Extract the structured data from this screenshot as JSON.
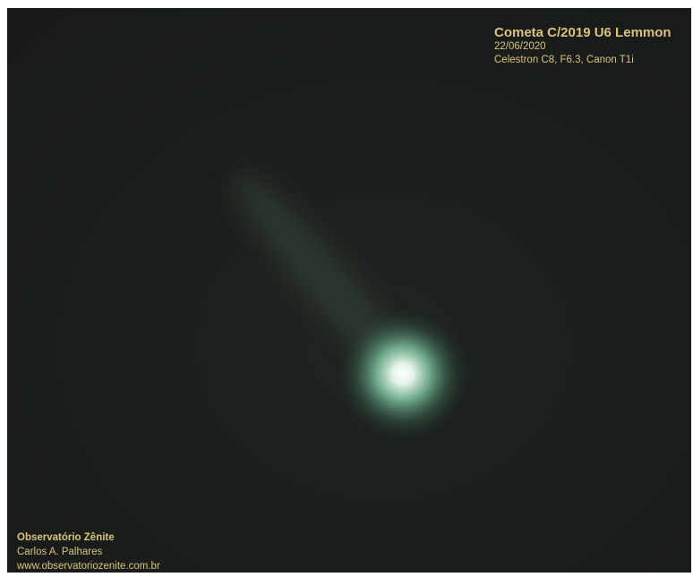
{
  "caption": {
    "title": "Cometa C/2019 U6 Lemmon",
    "date": "22/06/2020",
    "equipment": "Celestron C8, F6.3, Canon T1i"
  },
  "credit": {
    "name": "Observatório Zênite",
    "author": "Carlos A. Palhares",
    "website": "www.observatoriozenite.com.br"
  }
}
